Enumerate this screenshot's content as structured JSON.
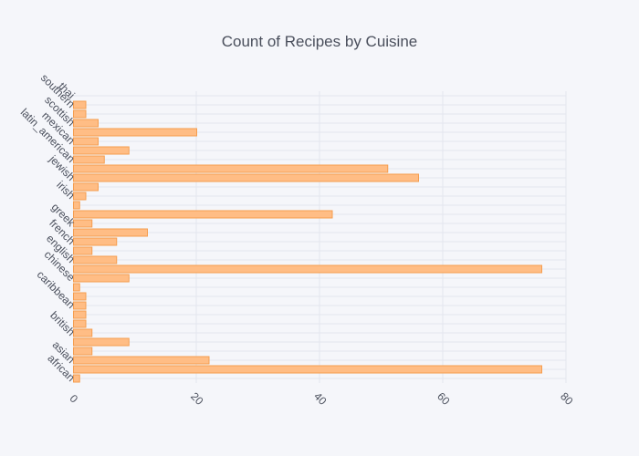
{
  "chart_data": {
    "type": "bar",
    "orientation": "horizontal",
    "title": "Count of Recipes by Cuisine",
    "xlabel": "",
    "ylabel": "",
    "xlim": [
      0,
      80
    ],
    "x_ticks": [
      0,
      20,
      40,
      60,
      80
    ],
    "grid": true,
    "colors": {
      "bar_fill": "#ffbd85",
      "bar_stroke": "#f59d4f",
      "background": "#f5f6fa",
      "grid": "#e3e6ee",
      "text": "#4a4f5c"
    },
    "bars": [
      {
        "label": "african",
        "value": 1
      },
      {
        "label": "",
        "value": 76
      },
      {
        "label": "asian",
        "value": 22
      },
      {
        "label": "",
        "value": 3
      },
      {
        "label": "",
        "value": 9
      },
      {
        "label": "british",
        "value": 3
      },
      {
        "label": "",
        "value": 2
      },
      {
        "label": "",
        "value": 2
      },
      {
        "label": "caribbean",
        "value": 2
      },
      {
        "label": "",
        "value": 2
      },
      {
        "label": "",
        "value": 1
      },
      {
        "label": "chinese",
        "value": 9
      },
      {
        "label": "",
        "value": 76
      },
      {
        "label": "english",
        "value": 7
      },
      {
        "label": "",
        "value": 3
      },
      {
        "label": "french",
        "value": 7
      },
      {
        "label": "",
        "value": 12
      },
      {
        "label": "greek",
        "value": 3
      },
      {
        "label": "",
        "value": 42
      },
      {
        "label": "",
        "value": 1
      },
      {
        "label": "irish",
        "value": 2
      },
      {
        "label": "",
        "value": 4
      },
      {
        "label": "jewish",
        "value": 56
      },
      {
        "label": "",
        "value": 51
      },
      {
        "label": "latin_american",
        "value": 5
      },
      {
        "label": "",
        "value": 9
      },
      {
        "label": "mexican",
        "value": 4
      },
      {
        "label": "",
        "value": 20
      },
      {
        "label": "scottish",
        "value": 4
      },
      {
        "label": "",
        "value": 2
      },
      {
        "label": "southern",
        "value": 2
      },
      {
        "label": "thai",
        "value": 0
      }
    ]
  }
}
